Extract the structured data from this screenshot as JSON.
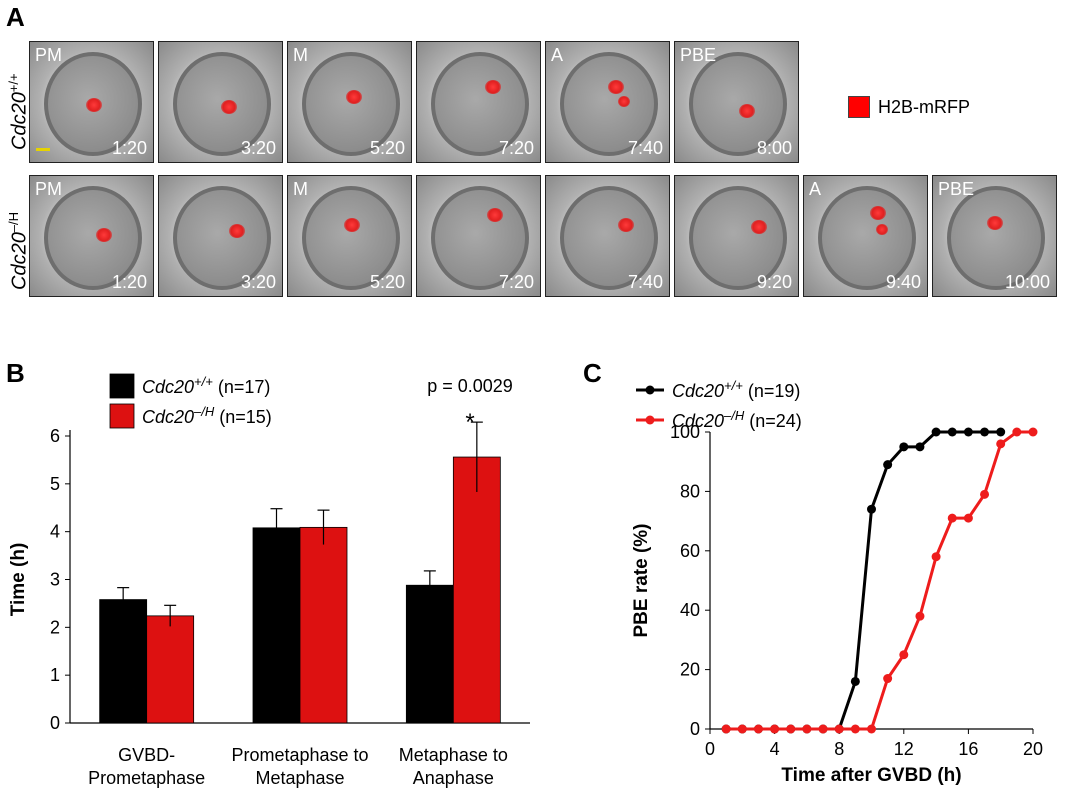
{
  "panel_a": {
    "letter": "A",
    "row1_label": "Cdc20",
    "row1_sup": "+/+",
    "row2_label": "Cdc20",
    "row2_sup": "–/H",
    "legend": "H2B-mRFP",
    "legend_color": "#ff0000",
    "row1": [
      {
        "stage": "PM",
        "time": "1:20"
      },
      {
        "stage": "",
        "time": "3:20"
      },
      {
        "stage": "M",
        "time": "5:20"
      },
      {
        "stage": "",
        "time": "7:20"
      },
      {
        "stage": "A",
        "time": "7:40"
      },
      {
        "stage": "PBE",
        "time": "8:00"
      }
    ],
    "row2": [
      {
        "stage": "PM",
        "time": "1:20"
      },
      {
        "stage": "",
        "time": "3:20"
      },
      {
        "stage": "M",
        "time": "5:20"
      },
      {
        "stage": "",
        "time": "7:20"
      },
      {
        "stage": "",
        "time": "7:40"
      },
      {
        "stage": "",
        "time": "9:20"
      },
      {
        "stage": "A",
        "time": "9:40"
      },
      {
        "stage": "PBE",
        "time": "10:00"
      }
    ]
  },
  "chart_data": [
    {
      "panel": "B",
      "type": "bar",
      "ylabel": "Time (h)",
      "ylim": [
        0,
        6
      ],
      "yticks": [
        "0",
        "1",
        "2",
        "3",
        "4",
        "5",
        "6"
      ],
      "categories": [
        [
          "GVBD-",
          "Prometaphase"
        ],
        [
          "Prometaphase to",
          "Metaphase"
        ],
        [
          "Metaphase to",
          "Anaphase"
        ]
      ],
      "series": [
        {
          "name": "Cdc20",
          "sup": "+/+",
          "n": "(n=17)",
          "color": "#000000",
          "values": [
            2.58,
            4.08,
            2.88
          ],
          "errors": [
            0.25,
            0.4,
            0.3
          ]
        },
        {
          "name": "Cdc20",
          "sup": "–/H",
          "n": "(n=15)",
          "color": "#dd1111",
          "values": [
            2.24,
            4.09,
            5.56
          ],
          "errors": [
            0.22,
            0.36,
            0.73
          ]
        }
      ],
      "annotation_p": "p = 0.0029",
      "annotation_star": "*"
    },
    {
      "panel": "C",
      "type": "line",
      "xlabel": "Time after GVBD (h)",
      "ylabel": "PBE rate (%)",
      "xlim": [
        0,
        20
      ],
      "ylim": [
        0,
        100
      ],
      "xticks": [
        "0",
        "4",
        "8",
        "12",
        "16",
        "20"
      ],
      "yticks": [
        "0",
        "20",
        "40",
        "60",
        "80",
        "100"
      ],
      "series": [
        {
          "name": "Cdc20",
          "sup": "+/+",
          "n": "(n=19)",
          "color": "#000000",
          "x": [
            1,
            2,
            3,
            4,
            5,
            6,
            7,
            8,
            9,
            10,
            11,
            12,
            13,
            14,
            15,
            16,
            17,
            18
          ],
          "y": [
            0,
            0,
            0,
            0,
            0,
            0,
            0,
            0,
            16,
            74,
            89,
            95,
            95,
            100,
            100,
            100,
            100,
            100
          ]
        },
        {
          "name": "Cdc20",
          "sup": "–/H",
          "n": "(n=24)",
          "color": "#ee1c1c",
          "x": [
            1,
            2,
            3,
            4,
            5,
            6,
            7,
            8,
            9,
            10,
            11,
            12,
            13,
            14,
            15,
            16,
            17,
            18,
            19,
            20
          ],
          "y": [
            0,
            0,
            0,
            0,
            0,
            0,
            0,
            0,
            0,
            0,
            17,
            25,
            38,
            58,
            71,
            71,
            79,
            96,
            100,
            100
          ]
        }
      ]
    }
  ]
}
